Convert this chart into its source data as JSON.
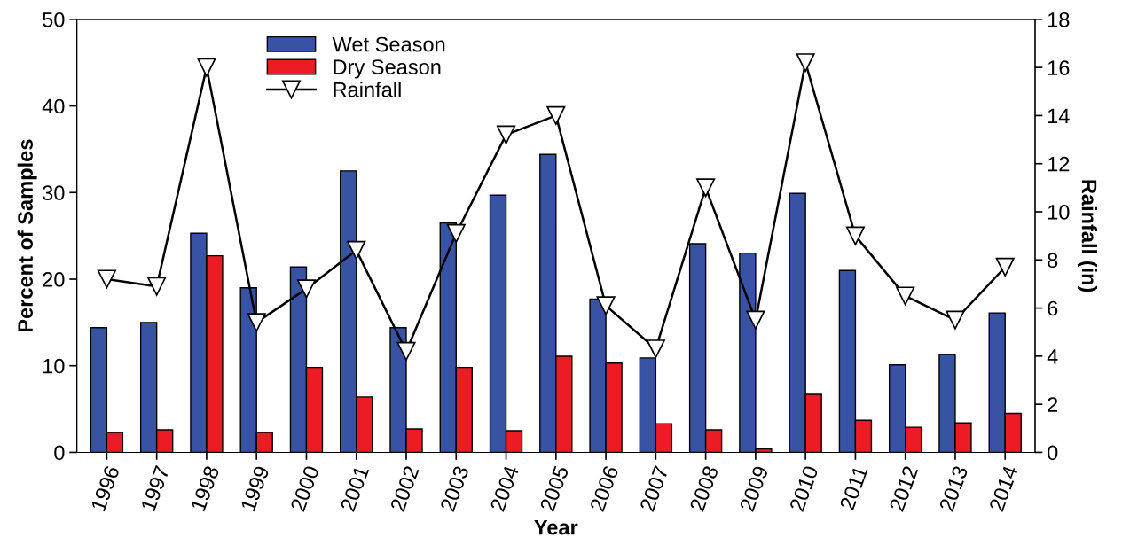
{
  "chart_data": {
    "type": "bar",
    "xlabel": "Year",
    "ylabel": "Percent of Samples",
    "y2label": "Rainfall (in)",
    "categories": [
      "1996",
      "1997",
      "1998",
      "1999",
      "2000",
      "2001",
      "2002",
      "2003",
      "2004",
      "2005",
      "2006",
      "2007",
      "2008",
      "2009",
      "2010",
      "2011",
      "2012",
      "2013",
      "2014"
    ],
    "series": [
      {
        "name": "Wet Season",
        "color": "#3953a4",
        "values": [
          14.4,
          15.0,
          25.3,
          19.0,
          21.4,
          32.5,
          14.4,
          26.5,
          29.7,
          34.4,
          17.7,
          10.9,
          24.1,
          23.0,
          29.9,
          21.0,
          10.1,
          11.3,
          16.1
        ]
      },
      {
        "name": "Dry Season",
        "color": "#ed1c24",
        "values": [
          2.3,
          2.6,
          22.7,
          2.3,
          9.8,
          6.4,
          2.7,
          9.8,
          2.5,
          11.1,
          10.3,
          3.3,
          2.6,
          0.4,
          6.7,
          3.7,
          2.9,
          3.4,
          4.5
        ]
      },
      {
        "name": "Rainfall",
        "type": "line",
        "axis": "y2",
        "color": "#000000",
        "marker": "triangle",
        "values": [
          7.2,
          6.9,
          16.0,
          5.4,
          6.8,
          8.4,
          4.2,
          9.1,
          13.2,
          14.0,
          6.1,
          4.3,
          11.0,
          5.5,
          16.2,
          9.0,
          6.5,
          5.5,
          7.7
        ]
      }
    ],
    "ylim": [
      0,
      50
    ],
    "yticks": [
      0,
      10,
      20,
      30,
      40,
      50
    ],
    "y2lim": [
      0,
      18
    ],
    "y2ticks": [
      0,
      2,
      4,
      6,
      8,
      10,
      12,
      14,
      16,
      18
    ],
    "legend": "top left",
    "grid": false
  }
}
